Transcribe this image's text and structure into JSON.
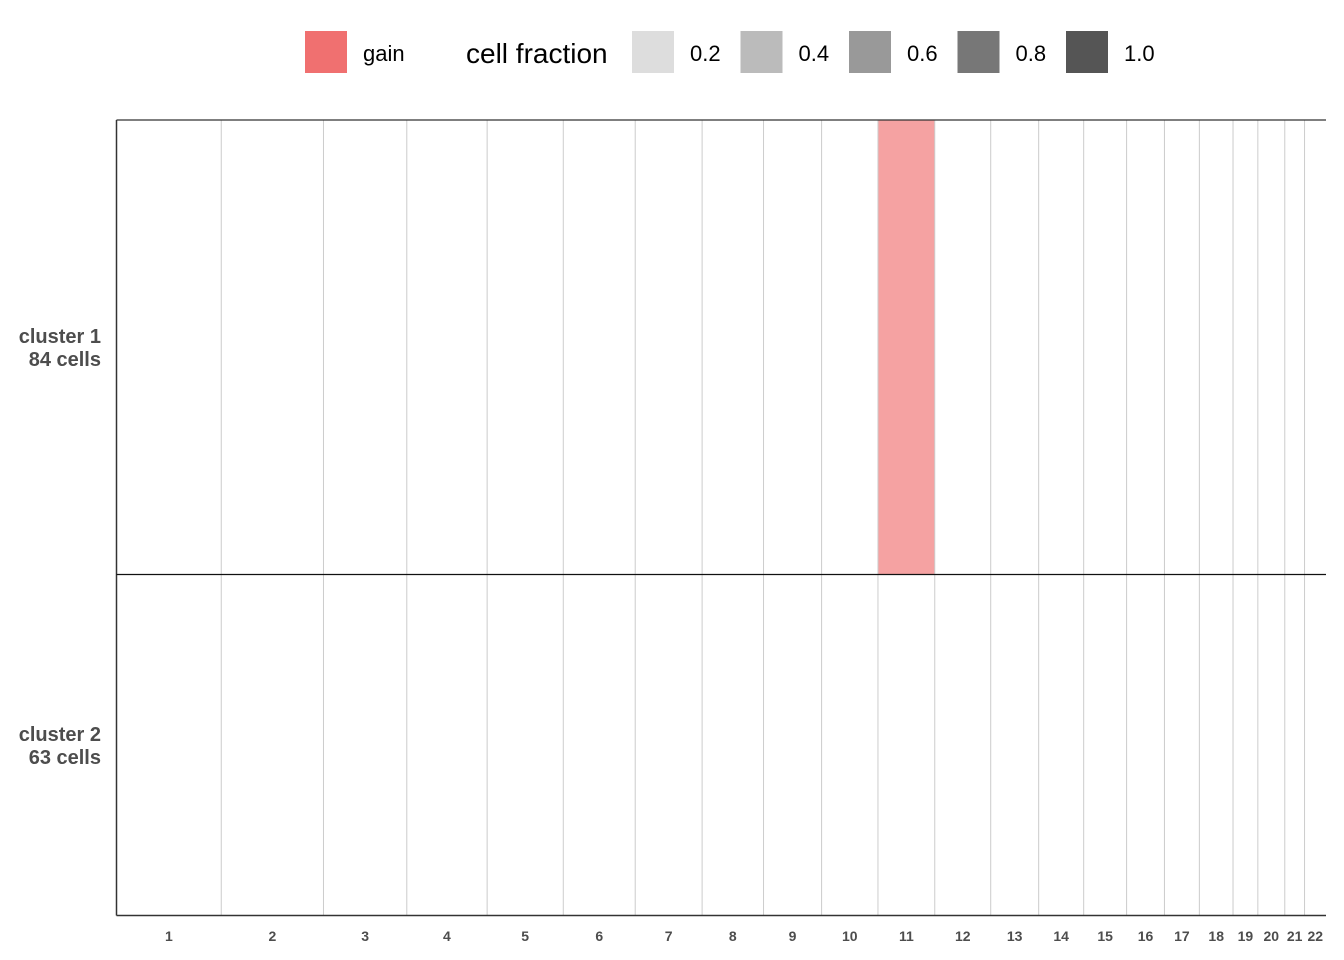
{
  "chart_data": {
    "type": "heatmap",
    "title": "",
    "xlabel": "",
    "ylabel": "",
    "legend": {
      "placement": "top",
      "gain_label": "gain",
      "gain_color": "#F07070",
      "fraction_title": "cell fraction",
      "fraction_levels": [
        {
          "label": "0.2",
          "color": "#DDDDDD"
        },
        {
          "label": "0.4",
          "color": "#BBBBBB"
        },
        {
          "label": "0.6",
          "color": "#999999"
        },
        {
          "label": "0.8",
          "color": "#777777"
        },
        {
          "label": "1.0",
          "color": "#555555"
        }
      ]
    },
    "chromosomes": [
      "1",
      "2",
      "3",
      "4",
      "5",
      "6",
      "7",
      "8",
      "9",
      "10",
      "11",
      "12",
      "13",
      "14",
      "15",
      "16",
      "17",
      "18",
      "19",
      "20",
      "21",
      "22"
    ],
    "chromosome_relative_lengths": [
      249,
      243,
      198,
      191,
      181,
      171,
      159,
      146,
      138,
      134,
      135,
      133,
      114,
      107,
      102,
      90,
      83,
      80,
      59,
      64,
      47,
      51
    ],
    "clusters": [
      {
        "label_line1": "cluster 1",
        "label_line2": "84 cells",
        "cells": 84,
        "events": [
          {
            "chromosome": "11",
            "type": "gain",
            "cell_fraction": 0.65
          }
        ]
      },
      {
        "label_line1": "cluster 2",
        "label_line2": "63 cells",
        "cells": 63,
        "events": []
      }
    ],
    "grid": true
  }
}
